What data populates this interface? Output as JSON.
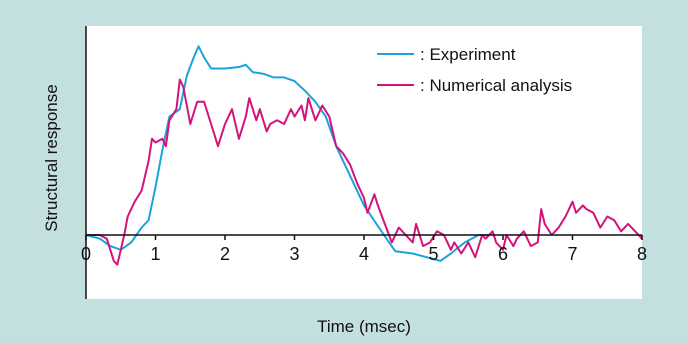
{
  "chart_data": {
    "type": "line",
    "xlabel": "Time (msec)",
    "ylabel": "Structural response",
    "xlim": [
      0,
      8
    ],
    "ylim": [
      -1.0,
      3.0
    ],
    "x_ticks": [
      "0",
      "1",
      "2",
      "3",
      "4",
      "5",
      "6",
      "7",
      "8"
    ],
    "grid": false,
    "legend_position": "top-right",
    "series": [
      {
        "name": ": Experiment",
        "color": "#1aa3dc",
        "x": [
          0,
          0.2,
          0.35,
          0.5,
          0.65,
          0.8,
          0.9,
          1.0,
          1.1,
          1.2,
          1.35,
          1.45,
          1.55,
          1.62,
          1.7,
          1.8,
          2.0,
          2.2,
          2.3,
          2.4,
          2.55,
          2.7,
          2.85,
          3.0,
          3.15,
          3.3,
          3.45,
          3.6,
          3.8,
          4.0,
          4.2,
          4.45,
          4.7,
          4.9,
          5.1,
          5.25,
          5.45,
          5.65,
          5.8
        ],
        "y": [
          0.0,
          -0.05,
          -0.15,
          -0.2,
          -0.1,
          0.1,
          0.2,
          0.65,
          1.15,
          1.6,
          1.7,
          2.15,
          2.4,
          2.55,
          2.4,
          2.25,
          2.25,
          2.27,
          2.3,
          2.2,
          2.18,
          2.13,
          2.13,
          2.08,
          1.95,
          1.8,
          1.6,
          1.2,
          0.8,
          0.4,
          0.12,
          -0.22,
          -0.25,
          -0.3,
          -0.35,
          -0.25,
          -0.1,
          0.0,
          0.0
        ]
      },
      {
        "name": ": Numerical analysis",
        "color": "#d4137a",
        "x": [
          0,
          0.2,
          0.3,
          0.4,
          0.45,
          0.5,
          0.55,
          0.6,
          0.7,
          0.8,
          0.9,
          0.95,
          1.0,
          1.1,
          1.15,
          1.2,
          1.3,
          1.35,
          1.4,
          1.5,
          1.6,
          1.7,
          1.8,
          1.9,
          2.0,
          2.1,
          2.2,
          2.3,
          2.35,
          2.45,
          2.5,
          2.6,
          2.65,
          2.75,
          2.85,
          2.95,
          3.0,
          3.1,
          3.15,
          3.2,
          3.3,
          3.4,
          3.5,
          3.6,
          3.7,
          3.8,
          3.9,
          4.0,
          4.05,
          4.15,
          4.2,
          4.3,
          4.4,
          4.5,
          4.6,
          4.7,
          4.75,
          4.85,
          4.95,
          5.05,
          5.15,
          5.25,
          5.3,
          5.4,
          5.5,
          5.6,
          5.7,
          5.75,
          5.85,
          5.9,
          6.0,
          6.05,
          6.15,
          6.2,
          6.3,
          6.4,
          6.5,
          6.55,
          6.6,
          6.7,
          6.8,
          6.9,
          7.0,
          7.05,
          7.15,
          7.2,
          7.3,
          7.4,
          7.5,
          7.6,
          7.7,
          7.8,
          7.9,
          8.0
        ],
        "y": [
          0.0,
          0.0,
          -0.05,
          -0.35,
          -0.4,
          -0.2,
          0.0,
          0.25,
          0.45,
          0.6,
          1.0,
          1.3,
          1.25,
          1.3,
          1.2,
          1.55,
          1.7,
          2.1,
          2.0,
          1.5,
          1.8,
          1.8,
          1.5,
          1.2,
          1.5,
          1.7,
          1.3,
          1.6,
          1.85,
          1.55,
          1.7,
          1.4,
          1.5,
          1.55,
          1.5,
          1.7,
          1.6,
          1.75,
          1.55,
          1.85,
          1.55,
          1.75,
          1.6,
          1.2,
          1.1,
          0.95,
          0.7,
          0.5,
          0.3,
          0.55,
          0.4,
          0.15,
          -0.1,
          0.1,
          0.0,
          -0.1,
          0.15,
          -0.15,
          -0.1,
          0.05,
          0.0,
          -0.2,
          -0.1,
          -0.25,
          -0.1,
          -0.3,
          0.0,
          -0.05,
          0.05,
          -0.1,
          -0.2,
          0.0,
          -0.15,
          -0.05,
          0.05,
          -0.15,
          -0.1,
          0.35,
          0.15,
          0.0,
          0.1,
          0.25,
          0.45,
          0.3,
          0.4,
          0.35,
          0.3,
          0.1,
          0.25,
          0.2,
          0.05,
          0.15,
          0.05,
          -0.05
        ]
      }
    ]
  }
}
